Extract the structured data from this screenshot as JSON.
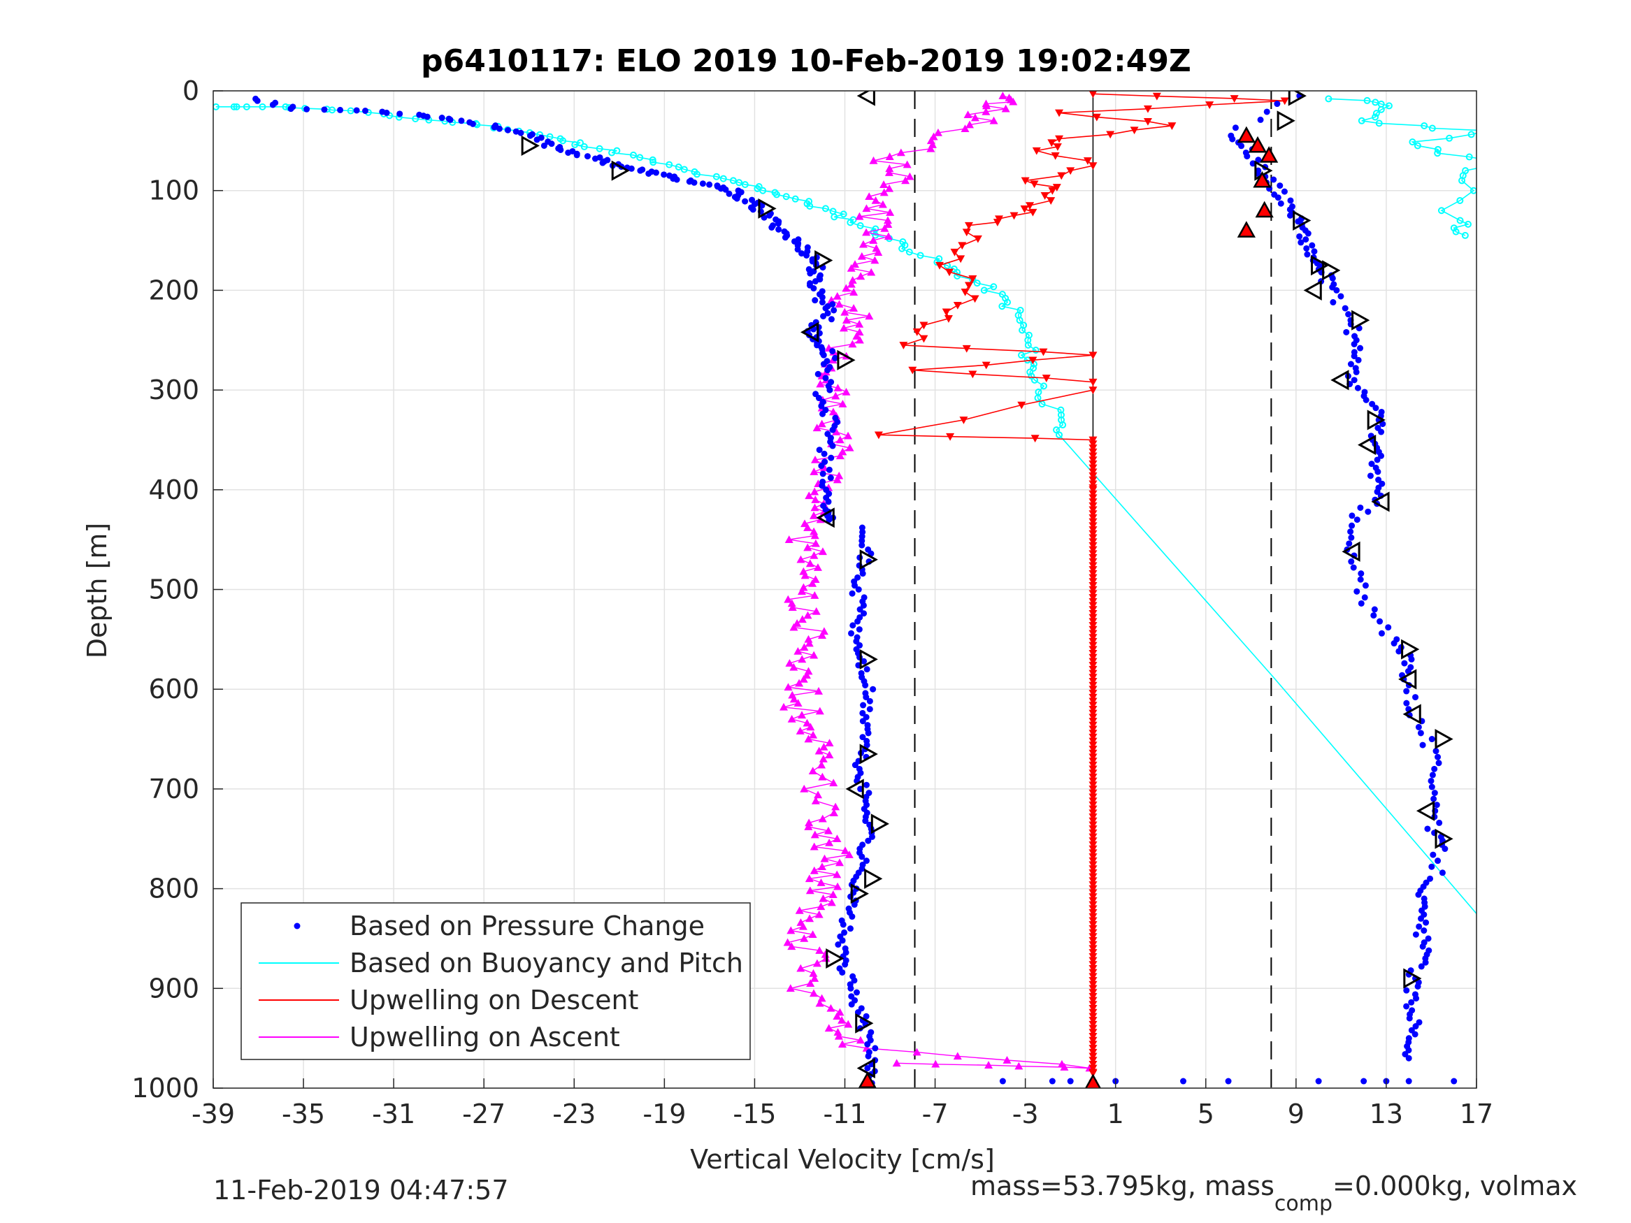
{
  "chart_data": {
    "type": "scatter",
    "title": "p6410117: ELO 2019 10-Feb-2019 19:02:49Z",
    "xlabel": "Vertical Velocity [cm/s]",
    "ylabel": "Depth [m]",
    "xlim": [
      -39,
      17
    ],
    "ylim": [
      0,
      1000
    ],
    "y_reversed": true,
    "grid": true,
    "legend_placement": "bottom-left",
    "xticks": [
      -39,
      -35,
      -31,
      -27,
      -23,
      -19,
      -15,
      -11,
      -7,
      -3,
      1,
      5,
      9,
      13,
      17
    ],
    "yticks": [
      0,
      100,
      200,
      300,
      400,
      500,
      600,
      700,
      800,
      900,
      1000
    ],
    "reference_lines": {
      "dashed": [
        -7.9,
        7.9
      ],
      "solid": [
        0
      ]
    },
    "series": [
      {
        "name": "Based on Pressure Change",
        "color": "#0000ff",
        "style": "dots",
        "descent": [
          [
            -37,
            8
          ],
          [
            -35.5,
            18
          ],
          [
            -32,
            20
          ],
          [
            -29.5,
            25
          ],
          [
            -28,
            30
          ],
          [
            -26,
            38
          ],
          [
            -25,
            45
          ],
          [
            -24,
            55
          ],
          [
            -23,
            62
          ],
          [
            -22,
            68
          ],
          [
            -21,
            75
          ],
          [
            -20,
            80
          ],
          [
            -19,
            85
          ],
          [
            -18,
            90
          ],
          [
            -17,
            95
          ],
          [
            -16,
            100
          ],
          [
            -15.5,
            108
          ],
          [
            -15,
            115
          ],
          [
            -14.5,
            125
          ],
          [
            -14,
            135
          ],
          [
            -13.5,
            145
          ],
          [
            -13,
            155
          ],
          [
            -12.5,
            165
          ],
          [
            -12.2,
            175
          ],
          [
            -12.4,
            185
          ],
          [
            -12.3,
            195
          ],
          [
            -12,
            210
          ],
          [
            -11.5,
            220
          ],
          [
            -12.2,
            235
          ],
          [
            -12.5,
            245
          ],
          [
            -12,
            255
          ],
          [
            -11.7,
            265
          ],
          [
            -11.8,
            280
          ],
          [
            -12,
            300
          ],
          [
            -11.8,
            320
          ],
          [
            -11.6,
            340
          ],
          [
            -11.8,
            360
          ],
          [
            -12,
            380
          ],
          [
            -11.9,
            400
          ],
          [
            -11.8,
            420
          ],
          [
            -11.7,
            430
          ]
        ],
        "ascent": [
          [
            -10,
            438
          ],
          [
            -10,
            460
          ],
          [
            -10.3,
            480
          ],
          [
            -10.5,
            500
          ],
          [
            -10.2,
            520
          ],
          [
            -10.6,
            540
          ],
          [
            -10.4,
            560
          ],
          [
            -10.2,
            580
          ],
          [
            -10,
            600
          ],
          [
            -10.1,
            620
          ],
          [
            -10,
            640
          ],
          [
            -10.2,
            660
          ],
          [
            -10.4,
            680
          ],
          [
            -10.2,
            700
          ],
          [
            -10,
            720
          ],
          [
            -9.8,
            740
          ],
          [
            -10.2,
            760
          ],
          [
            -10.3,
            780
          ],
          [
            -10.5,
            800
          ],
          [
            -10.8,
            820
          ],
          [
            -11,
            840
          ],
          [
            -11.2,
            860
          ],
          [
            -11,
            880
          ],
          [
            -10.7,
            900
          ],
          [
            -10.4,
            920
          ],
          [
            -10.1,
            940
          ],
          [
            -9.9,
            960
          ],
          [
            -9.8,
            980
          ],
          [
            -9.8,
            995
          ]
        ],
        "upcast": [
          [
            9,
            5
          ],
          [
            6,
            45
          ],
          [
            7,
            62
          ],
          [
            7.5,
            80
          ],
          [
            8,
            95
          ],
          [
            8.5,
            110
          ],
          [
            9,
            125
          ],
          [
            9.3,
            140
          ],
          [
            9.5,
            155
          ],
          [
            9.8,
            170
          ],
          [
            10.3,
            185
          ],
          [
            10.5,
            200
          ],
          [
            11.5,
            230
          ],
          [
            11.5,
            250
          ],
          [
            11.8,
            270
          ],
          [
            11.3,
            290
          ],
          [
            12.2,
            310
          ],
          [
            12.8,
            330
          ],
          [
            12.5,
            350
          ],
          [
            12.5,
            370
          ],
          [
            12.6,
            390
          ],
          [
            12.5,
            410
          ],
          [
            11.5,
            430
          ],
          [
            11.3,
            460
          ],
          [
            11.8,
            490
          ],
          [
            12.2,
            520
          ],
          [
            13.2,
            550
          ],
          [
            14,
            570
          ],
          [
            14,
            590
          ],
          [
            14.2,
            620
          ],
          [
            14.8,
            650
          ],
          [
            15.2,
            680
          ],
          [
            15.3,
            710
          ],
          [
            15,
            740
          ],
          [
            15.4,
            760
          ],
          [
            15.2,
            790
          ],
          [
            14.5,
            810
          ],
          [
            14.5,
            830
          ],
          [
            14.6,
            850
          ],
          [
            14.6,
            870
          ],
          [
            14.2,
            890
          ],
          [
            14.1,
            910
          ],
          [
            14.3,
            930
          ],
          [
            14.2,
            950
          ],
          [
            14,
            970
          ]
        ],
        "bottom": [
          [
            -4,
            993
          ],
          [
            -1.8,
            993
          ],
          [
            -1,
            993
          ],
          [
            1,
            993
          ],
          [
            4,
            993
          ],
          [
            6,
            993
          ],
          [
            10,
            993
          ],
          [
            12,
            993
          ],
          [
            13,
            993
          ],
          [
            14,
            993
          ],
          [
            16,
            993
          ]
        ]
      },
      {
        "name": "Based on Buoyancy and Pitch",
        "color": "#00ffff",
        "style": "line-markers",
        "descent": [
          [
            -39,
            16
          ],
          [
            -36,
            16
          ],
          [
            -33,
            20
          ],
          [
            -30,
            28
          ],
          [
            -27,
            34
          ],
          [
            -25,
            42
          ],
          [
            -23,
            52
          ],
          [
            -21,
            62
          ],
          [
            -19,
            74
          ],
          [
            -17,
            86
          ],
          [
            -15,
            96
          ],
          [
            -13.5,
            106
          ],
          [
            -12,
            118
          ],
          [
            -10.5,
            132
          ],
          [
            -9,
            148
          ],
          [
            -7.5,
            165
          ],
          [
            -6,
            182
          ],
          [
            -4.5,
            200
          ],
          [
            -3.5,
            220
          ],
          [
            -3,
            245
          ],
          [
            -2.8,
            270
          ],
          [
            -2.5,
            290
          ],
          [
            -1.8,
            320
          ],
          [
            -1.5,
            345
          ]
        ],
        "model_line": [
          [
            -1.5,
            345
          ],
          [
            8,
            588
          ],
          [
            17,
            825
          ]
        ],
        "upcast": [
          [
            11,
            8
          ],
          [
            13,
            15
          ],
          [
            12,
            30
          ],
          [
            17,
            40
          ],
          [
            14,
            55
          ],
          [
            17,
            70
          ],
          [
            16.5,
            90
          ],
          [
            16,
            130
          ],
          [
            16.5,
            145
          ]
        ]
      },
      {
        "name": "Upwelling on Descent",
        "color": "#ff0000",
        "style": "line-triangles-down",
        "values": [
          [
            0,
            3
          ],
          [
            8.5,
            10
          ],
          [
            -1.5,
            22
          ],
          [
            3.5,
            35
          ],
          [
            -1.5,
            48
          ],
          [
            -2.5,
            60
          ],
          [
            0,
            75
          ],
          [
            -3,
            90
          ],
          [
            -1.8,
            100
          ],
          [
            -2.8,
            115
          ],
          [
            -3.5,
            125
          ],
          [
            -5.5,
            135
          ],
          [
            -5.8,
            155
          ],
          [
            -6.8,
            175
          ],
          [
            -5.5,
            195
          ],
          [
            -6,
            215
          ],
          [
            -7.5,
            235
          ],
          [
            -8.4,
            255
          ],
          [
            0,
            265
          ],
          [
            -8,
            280
          ],
          [
            0,
            292
          ],
          [
            0,
            300
          ],
          [
            -9.5,
            345
          ],
          [
            0,
            350
          ],
          [
            0,
            400
          ],
          [
            0,
            600
          ],
          [
            0,
            800
          ],
          [
            0,
            985
          ],
          [
            0,
            995
          ]
        ]
      },
      {
        "name": "Upwelling on Ascent",
        "color": "#ff00ff",
        "style": "line-triangles-up",
        "values": [
          [
            -9,
            975
          ],
          [
            0,
            980
          ],
          [
            -10.5,
            960
          ],
          [
            -11.5,
            940
          ],
          [
            -12,
            920
          ],
          [
            -12.8,
            895
          ],
          [
            -12.5,
            870
          ],
          [
            -13,
            850
          ],
          [
            -12.5,
            830
          ],
          [
            -11.8,
            810
          ],
          [
            -12,
            790
          ],
          [
            -11.5,
            770
          ],
          [
            -12,
            750
          ],
          [
            -11.8,
            730
          ],
          [
            -12.2,
            700
          ],
          [
            -12,
            670
          ],
          [
            -12.5,
            650
          ],
          [
            -12.8,
            630
          ],
          [
            -13,
            610
          ],
          [
            -12.6,
            590
          ],
          [
            -12.8,
            570
          ],
          [
            -12.5,
            550
          ],
          [
            -12.5,
            530
          ],
          [
            -12.8,
            510
          ],
          [
            -12.9,
            490
          ],
          [
            -12.5,
            470
          ],
          [
            -12.8,
            450
          ],
          [
            -12.5,
            430
          ],
          [
            -12,
            410
          ],
          [
            -11.5,
            390
          ],
          [
            -11.8,
            370
          ],
          [
            -11.4,
            350
          ],
          [
            -11.7,
            330
          ],
          [
            -11.5,
            310
          ],
          [
            -11.4,
            290
          ],
          [
            -11.5,
            270
          ],
          [
            -11,
            250
          ],
          [
            -10.5,
            230
          ],
          [
            -10.8,
            210
          ],
          [
            -10.5,
            190
          ],
          [
            -10,
            170
          ],
          [
            -9.5,
            150
          ],
          [
            -9.5,
            130
          ],
          [
            -10,
            110
          ],
          [
            -8.5,
            90
          ],
          [
            -9,
            70
          ],
          [
            -7,
            50
          ],
          [
            -5,
            30
          ],
          [
            -4.5,
            15
          ],
          [
            -4,
            5
          ]
        ]
      }
    ],
    "markers": {
      "black_triangles_right": [
        [
          -25,
          55
        ],
        [
          -21,
          80
        ],
        [
          -14.5,
          118
        ],
        [
          -12,
          170
        ],
        [
          -11,
          270
        ],
        [
          -10,
          470
        ],
        [
          -10,
          570
        ],
        [
          -10,
          665
        ],
        [
          -9.5,
          735
        ],
        [
          -9.8,
          790
        ],
        [
          -10.4,
          805
        ],
        [
          -11.5,
          870
        ],
        [
          -10.2,
          935
        ],
        [
          9,
          5
        ],
        [
          8.5,
          30
        ],
        [
          7.5,
          80
        ],
        [
          9.2,
          130
        ],
        [
          10,
          175
        ],
        [
          10.5,
          180
        ],
        [
          11.8,
          230
        ],
        [
          12.5,
          330
        ],
        [
          14,
          560
        ],
        [
          15.5,
          650
        ],
        [
          15.5,
          750
        ],
        [
          14.1,
          890
        ]
      ],
      "black_triangles_left": [
        [
          -10,
          5
        ],
        [
          -12.5,
          242
        ],
        [
          -11.8,
          428
        ],
        [
          -10.5,
          700
        ],
        [
          -10,
          980
        ],
        [
          9.8,
          200
        ],
        [
          11,
          290
        ],
        [
          12.2,
          355
        ],
        [
          12.8,
          412
        ],
        [
          11.5,
          462
        ],
        [
          14,
          590
        ],
        [
          14.2,
          625
        ],
        [
          14.8,
          722
        ]
      ],
      "red_triangles": [
        [
          6.8,
          45
        ],
        [
          7.3,
          55
        ],
        [
          7.8,
          65
        ],
        [
          7.5,
          90
        ],
        [
          7.6,
          120
        ],
        [
          6.8,
          140
        ],
        [
          -10,
          993
        ],
        [
          0,
          995
        ]
      ]
    },
    "legend": [
      {
        "label": "Based on Pressure Change",
        "color": "#0000ff",
        "style": "dot"
      },
      {
        "label": "Based on Buoyancy and Pitch",
        "color": "#00ffff",
        "style": "line"
      },
      {
        "label": "Upwelling on Descent",
        "color": "#ff0000",
        "style": "line"
      },
      {
        "label": "Upwelling on Ascent",
        "color": "#ff00ff",
        "style": "line"
      }
    ]
  },
  "footer": {
    "timestamp": "11-Feb-2019 04:47:57",
    "mass_text": "mass=53.795kg, mass",
    "mass_sub": "comp",
    "mass_rest": "=0.000kg, volmax"
  }
}
